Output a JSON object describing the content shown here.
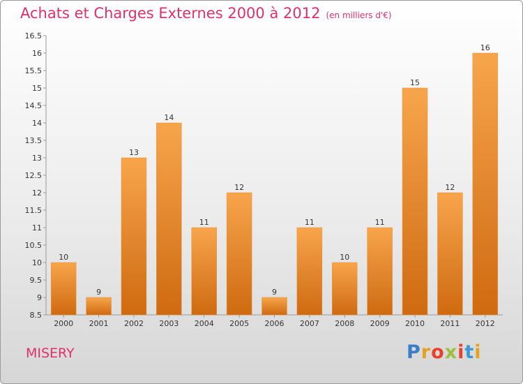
{
  "header": {
    "title": "Achats et Charges Externes 2000 à 2012",
    "unit": "(en milliers d'€)"
  },
  "footer": {
    "location": "MISERY",
    "logo_letters": [
      {
        "ch": "P",
        "color": "#3a7dc9"
      },
      {
        "ch": "r",
        "color": "#e8a020"
      },
      {
        "ch": "o",
        "color": "#e8402a"
      },
      {
        "ch": "x",
        "color": "#9bc13a"
      },
      {
        "ch": "i",
        "color": "#e8402a"
      },
      {
        "ch": "t",
        "color": "#3a9ad9"
      },
      {
        "ch": "i",
        "color": "#e8a020"
      }
    ]
  },
  "chart_data": {
    "type": "bar",
    "title": "Achats et Charges Externes 2000 à 2012",
    "categories": [
      "2000",
      "2001",
      "2002",
      "2003",
      "2004",
      "2005",
      "2006",
      "2007",
      "2008",
      "2009",
      "2010",
      "2011",
      "2012"
    ],
    "values": [
      10,
      9,
      13,
      14,
      11,
      12,
      9,
      11,
      10,
      11,
      15,
      12,
      16
    ],
    "data_labels": [
      "10",
      "9",
      "13",
      "14",
      "11",
      "12",
      "9",
      "11",
      "10",
      "11",
      "15",
      "12",
      "16"
    ],
    "ylim": [
      8.5,
      16.5
    ],
    "yticks": [
      "8.5",
      "9",
      "9.5",
      "10",
      "10.5",
      "11",
      "11.5",
      "12",
      "12.5",
      "13",
      "13.5",
      "14",
      "14.5",
      "15",
      "15.5",
      "16",
      "16.5"
    ],
    "grid": false,
    "bar_color_top": "#f7a54c",
    "bar_color_bottom": "#cf6a10"
  }
}
